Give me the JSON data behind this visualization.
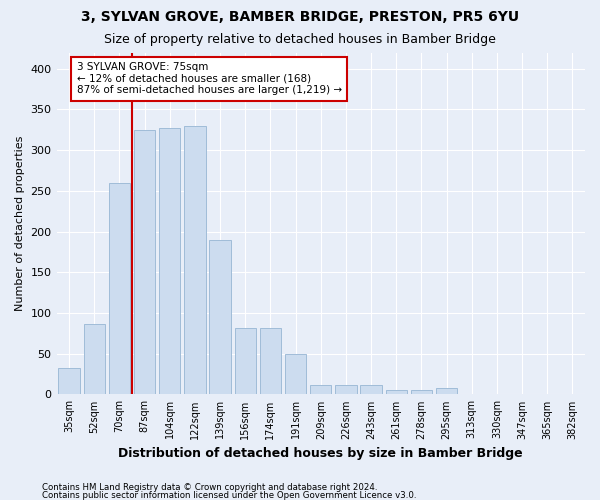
{
  "title": "3, SYLVAN GROVE, BAMBER BRIDGE, PRESTON, PR5 6YU",
  "subtitle": "Size of property relative to detached houses in Bamber Bridge",
  "xlabel": "Distribution of detached houses by size in Bamber Bridge",
  "ylabel": "Number of detached properties",
  "categories": [
    "35sqm",
    "52sqm",
    "70sqm",
    "87sqm",
    "104sqm",
    "122sqm",
    "139sqm",
    "156sqm",
    "174sqm",
    "191sqm",
    "209sqm",
    "226sqm",
    "243sqm",
    "261sqm",
    "278sqm",
    "295sqm",
    "313sqm",
    "330sqm",
    "347sqm",
    "365sqm",
    "382sqm"
  ],
  "values": [
    33,
    87,
    260,
    325,
    327,
    330,
    190,
    82,
    82,
    50,
    11,
    11,
    12,
    5,
    6,
    8,
    1,
    1,
    0,
    1,
    0
  ],
  "bar_color": "#ccdcef",
  "bar_edge_color": "#a0bcd8",
  "property_line_x": 2.5,
  "property_line_color": "#cc0000",
  "annotation_text": "3 SYLVAN GROVE: 75sqm\n← 12% of detached houses are smaller (168)\n87% of semi-detached houses are larger (1,219) →",
  "annotation_box_facecolor": "#ffffff",
  "annotation_box_edgecolor": "#cc0000",
  "ylim": [
    0,
    420
  ],
  "yticks": [
    0,
    50,
    100,
    150,
    200,
    250,
    300,
    350,
    400
  ],
  "footer1": "Contains HM Land Registry data © Crown copyright and database right 2024.",
  "footer2": "Contains public sector information licensed under the Open Government Licence v3.0.",
  "bg_color": "#e8eef8",
  "plot_bg_color": "#e8eef8",
  "grid_color": "#ffffff",
  "title_fontsize": 10,
  "subtitle_fontsize": 9
}
